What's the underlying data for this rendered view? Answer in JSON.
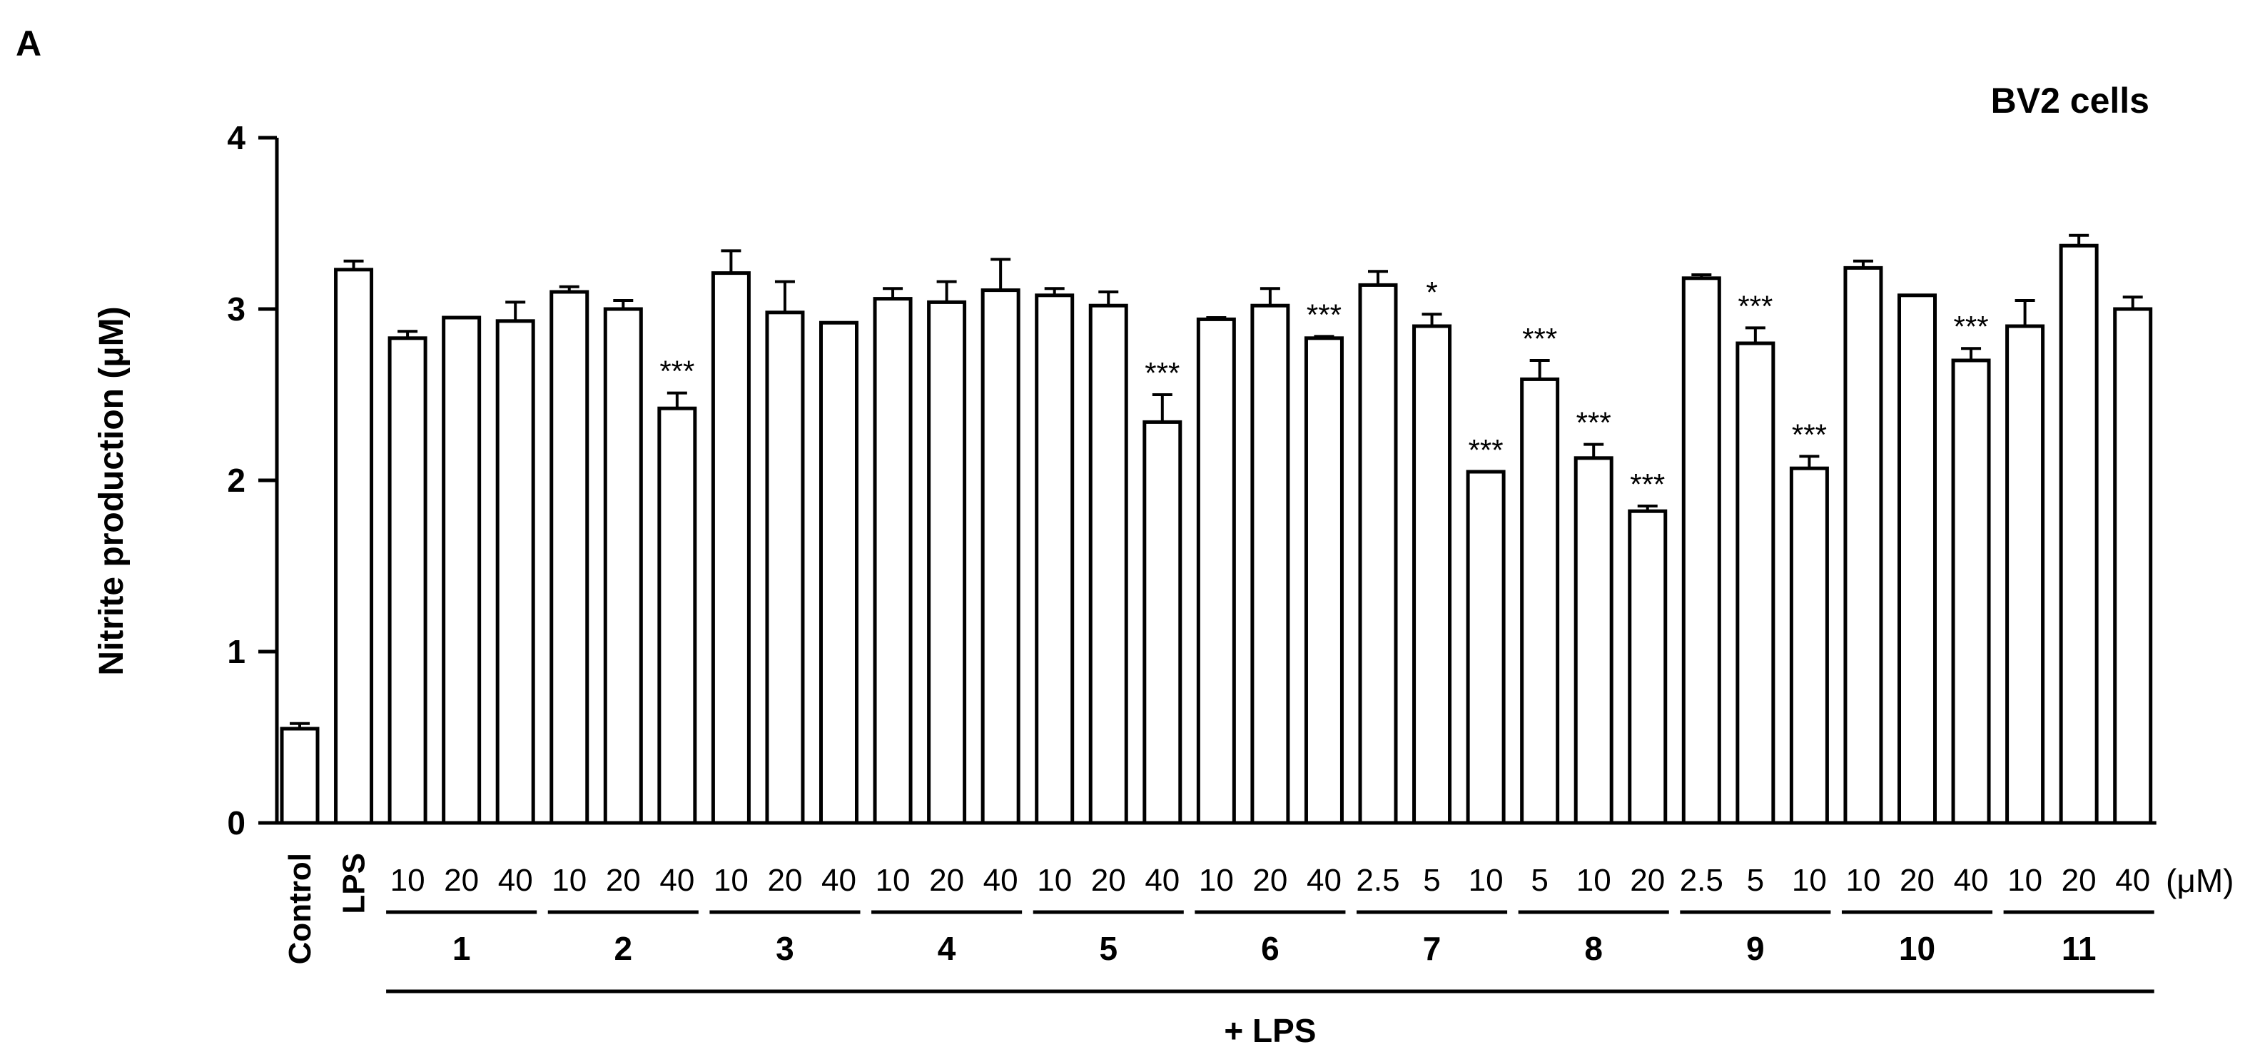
{
  "panel_label": "A",
  "chart_data": {
    "type": "bar",
    "title": "BV2 cells",
    "ylabel": "Nitrite production (μM)",
    "xlabel": "",
    "ylim": [
      0,
      4
    ],
    "yticks": [
      "0",
      "1",
      "2",
      "3",
      "4"
    ],
    "unit_label": "(μM)",
    "treatment_label": "+ LPS",
    "colors": {
      "bar_fill": "#ffffff",
      "stroke": "#000000"
    },
    "bars": [
      {
        "label": "Control",
        "value": 0.55,
        "error": 0.03,
        "sig": ""
      },
      {
        "label": "LPS",
        "value": 3.23,
        "error": 0.05,
        "sig": ""
      },
      {
        "label": "10",
        "value": 2.83,
        "error": 0.04,
        "sig": ""
      },
      {
        "label": "20",
        "value": 2.95,
        "error": 0.0,
        "sig": ""
      },
      {
        "label": "40",
        "value": 2.93,
        "error": 0.11,
        "sig": ""
      },
      {
        "label": "10",
        "value": 3.1,
        "error": 0.03,
        "sig": ""
      },
      {
        "label": "20",
        "value": 3.0,
        "error": 0.05,
        "sig": ""
      },
      {
        "label": "40",
        "value": 2.42,
        "error": 0.09,
        "sig": "***"
      },
      {
        "label": "10",
        "value": 3.21,
        "error": 0.13,
        "sig": ""
      },
      {
        "label": "20",
        "value": 2.98,
        "error": 0.18,
        "sig": ""
      },
      {
        "label": "40",
        "value": 2.92,
        "error": 0.0,
        "sig": ""
      },
      {
        "label": "10",
        "value": 3.06,
        "error": 0.06,
        "sig": ""
      },
      {
        "label": "20",
        "value": 3.04,
        "error": 0.12,
        "sig": ""
      },
      {
        "label": "40",
        "value": 3.11,
        "error": 0.18,
        "sig": ""
      },
      {
        "label": "10",
        "value": 3.08,
        "error": 0.04,
        "sig": ""
      },
      {
        "label": "20",
        "value": 3.02,
        "error": 0.08,
        "sig": ""
      },
      {
        "label": "40",
        "value": 2.34,
        "error": 0.16,
        "sig": "***"
      },
      {
        "label": "10",
        "value": 2.94,
        "error": 0.01,
        "sig": ""
      },
      {
        "label": "20",
        "value": 3.02,
        "error": 0.1,
        "sig": ""
      },
      {
        "label": "40",
        "value": 2.83,
        "error": 0.01,
        "sig": "***"
      },
      {
        "label": "2.5",
        "value": 3.14,
        "error": 0.08,
        "sig": ""
      },
      {
        "label": "5",
        "value": 2.9,
        "error": 0.07,
        "sig": "*"
      },
      {
        "label": "10",
        "value": 2.05,
        "error": 0.0,
        "sig": "***"
      },
      {
        "label": "5",
        "value": 2.59,
        "error": 0.11,
        "sig": "***"
      },
      {
        "label": "10",
        "value": 2.13,
        "error": 0.08,
        "sig": "***"
      },
      {
        "label": "20",
        "value": 1.82,
        "error": 0.03,
        "sig": "***"
      },
      {
        "label": "2.5",
        "value": 3.18,
        "error": 0.02,
        "sig": ""
      },
      {
        "label": "5",
        "value": 2.8,
        "error": 0.09,
        "sig": "***"
      },
      {
        "label": "10",
        "value": 2.07,
        "error": 0.07,
        "sig": "***"
      },
      {
        "label": "10",
        "value": 3.24,
        "error": 0.04,
        "sig": ""
      },
      {
        "label": "20",
        "value": 3.08,
        "error": 0.0,
        "sig": ""
      },
      {
        "label": "40",
        "value": 2.7,
        "error": 0.07,
        "sig": "***"
      },
      {
        "label": "10",
        "value": 2.9,
        "error": 0.15,
        "sig": ""
      },
      {
        "label": "20",
        "value": 3.37,
        "error": 0.06,
        "sig": ""
      },
      {
        "label": "40",
        "value": 3.0,
        "error": 0.07,
        "sig": ""
      }
    ],
    "groups": [
      {
        "name": "1",
        "bars": [
          2,
          3,
          4
        ]
      },
      {
        "name": "2",
        "bars": [
          5,
          6,
          7
        ]
      },
      {
        "name": "3",
        "bars": [
          8,
          9,
          10
        ]
      },
      {
        "name": "4",
        "bars": [
          11,
          12,
          13
        ]
      },
      {
        "name": "5",
        "bars": [
          14,
          15,
          16
        ]
      },
      {
        "name": "6",
        "bars": [
          17,
          18,
          19
        ]
      },
      {
        "name": "7",
        "bars": [
          20,
          21,
          22
        ]
      },
      {
        "name": "8",
        "bars": [
          23,
          24,
          25
        ]
      },
      {
        "name": "9",
        "bars": [
          26,
          27,
          28
        ]
      },
      {
        "name": "10",
        "bars": [
          29,
          30,
          31
        ]
      },
      {
        "name": "11",
        "bars": [
          32,
          33,
          34
        ]
      }
    ]
  }
}
